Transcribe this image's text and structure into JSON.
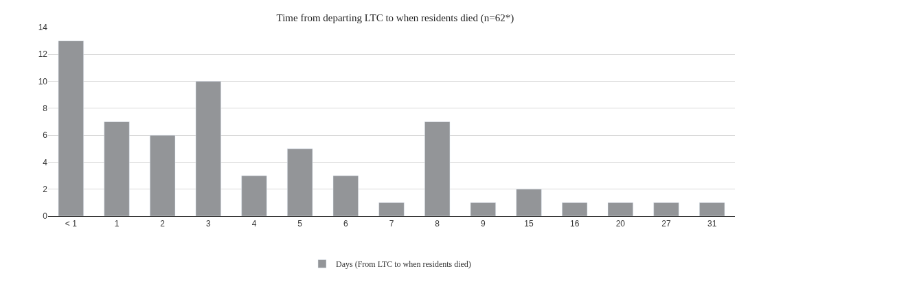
{
  "chart_data": {
    "type": "bar",
    "title": "Time from departing LTC to when residents died (n=62*)",
    "categories": [
      "< 1",
      "1",
      "2",
      "3",
      "4",
      "5",
      "6",
      "7",
      "8",
      "9",
      "15",
      "16",
      "20",
      "27",
      "31"
    ],
    "series": [
      {
        "name": "Days (From LTC to when residents died)",
        "color": "#939598",
        "values": [
          13,
          7,
          6,
          10,
          3,
          5,
          3,
          1,
          7,
          1,
          2,
          1,
          1,
          1,
          1
        ]
      }
    ],
    "ylim": [
      0,
      14
    ],
    "yticks": [
      0,
      2,
      4,
      6,
      8,
      10,
      12,
      14
    ],
    "grid": "y",
    "legend": "bottom"
  }
}
